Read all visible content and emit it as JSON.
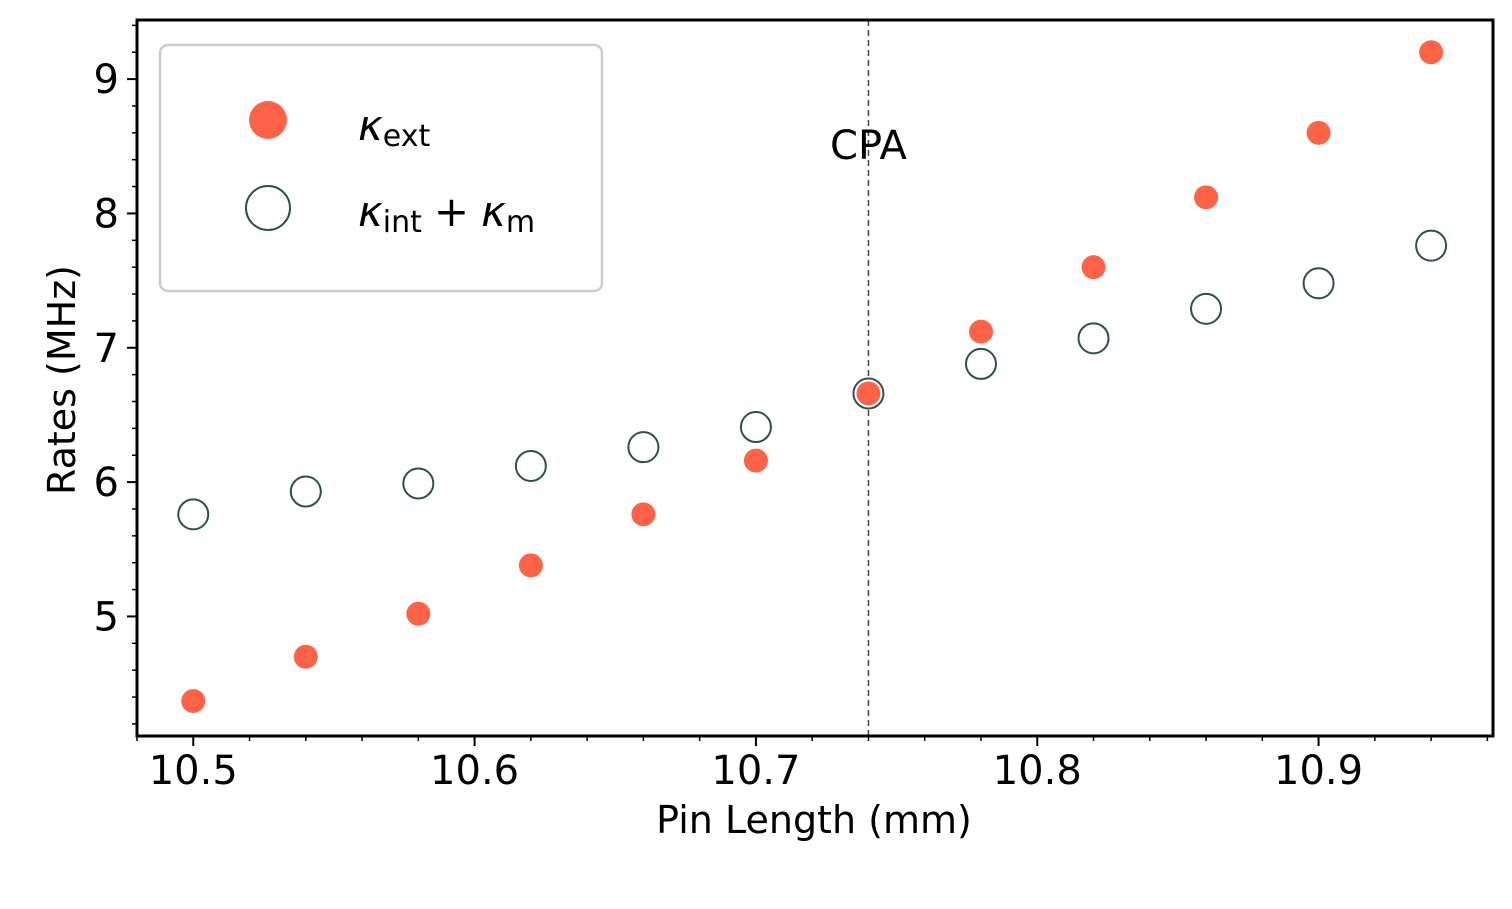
{
  "chart_data": {
    "type": "scatter",
    "title": "",
    "xlabel": "Pin Length (mm)",
    "ylabel": "Rates (MHz)",
    "xlim": [
      10.48,
      10.962
    ],
    "ylim": [
      4.11,
      9.44
    ],
    "xticks": [
      10.5,
      10.6,
      10.7,
      10.8,
      10.9
    ],
    "xtick_labels": [
      "10.5",
      "10.6",
      "10.7",
      "10.8",
      "10.9"
    ],
    "yticks": [
      5,
      6,
      7,
      8,
      9
    ],
    "ytick_labels": [
      "5",
      "6",
      "7",
      "8",
      "9"
    ],
    "grid": false,
    "legend_position": "top-left",
    "series": [
      {
        "name": "κext",
        "legend_main": "κ",
        "legend_sub": "ext",
        "marker": "filled-circle",
        "color": "#ff6347",
        "x": [
          10.5,
          10.54,
          10.58,
          10.62,
          10.66,
          10.7,
          10.74,
          10.78,
          10.82,
          10.86,
          10.9,
          10.94
        ],
        "y": [
          4.37,
          4.7,
          5.02,
          5.38,
          5.76,
          6.16,
          6.66,
          7.12,
          7.6,
          8.12,
          8.6,
          9.2
        ]
      },
      {
        "name": "κint + κm",
        "legend_main": "κ",
        "legend_sub": "int",
        "legend_op": "+",
        "legend_main2": "κ",
        "legend_sub2": "m",
        "marker": "open-circle",
        "color": "#2f4f4f",
        "x": [
          10.5,
          10.54,
          10.58,
          10.62,
          10.66,
          10.7,
          10.74,
          10.78,
          10.82,
          10.86,
          10.9,
          10.94
        ],
        "y": [
          5.76,
          5.93,
          5.99,
          6.12,
          6.26,
          6.41,
          6.66,
          6.88,
          7.07,
          7.29,
          7.48,
          7.76
        ]
      }
    ],
    "annotations": [
      {
        "text": "CPA",
        "x": 10.74,
        "y": 8.3,
        "vline": true
      }
    ]
  }
}
